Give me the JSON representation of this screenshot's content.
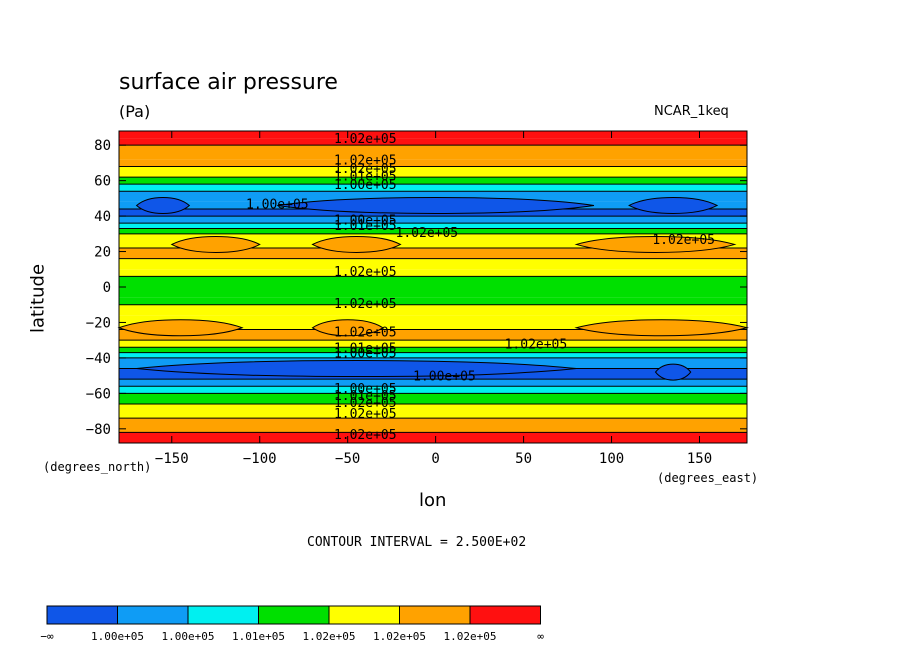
{
  "chart_data": {
    "type": "contour",
    "title": "surface air pressure",
    "units": "(Pa)",
    "model_label": "NCAR_1keq",
    "xlabel": "lon",
    "ylabel": "latitude",
    "x_units_label": "(degrees_east)",
    "y_units_label": "(degrees_north)",
    "xlim": [
      -180,
      177
    ],
    "ylim": [
      -88,
      88
    ],
    "x_ticks": [
      -150,
      -100,
      -50,
      0,
      50,
      100,
      150
    ],
    "y_ticks": [
      80,
      60,
      40,
      20,
      0,
      -20,
      -40,
      -60,
      -80
    ],
    "contour_interval_text": "CONTOUR INTERVAL = 2.500E+02",
    "band_colors": [
      "#0f56e8",
      "#0f9cf5",
      "#00f0f0",
      "#00e000",
      "#ffff00",
      "#ffa200",
      "#ff1010"
    ],
    "colorbar_labels": [
      "−∞",
      "1.00e+05",
      "1.00e+05",
      "1.01e+05",
      "1.02e+05",
      "1.02e+05",
      "1.02e+05",
      "∞"
    ],
    "zonal_levels": [
      {
        "lat": 88,
        "level": 6
      },
      {
        "lat": 84,
        "level": 6
      },
      {
        "lat": 80,
        "level": 5
      },
      {
        "lat": 72,
        "level": 5
      },
      {
        "lat": 68,
        "level": 4
      },
      {
        "lat": 62,
        "level": 3
      },
      {
        "lat": 58,
        "level": 2
      },
      {
        "lat": 54,
        "level": 1
      },
      {
        "lat": 48,
        "level": 1
      },
      {
        "lat": 44,
        "level": 0
      },
      {
        "lat": 40,
        "level": 1
      },
      {
        "lat": 36,
        "level": 2
      },
      {
        "lat": 33,
        "level": 3
      },
      {
        "lat": 30,
        "level": 4
      },
      {
        "lat": 22,
        "level": 5
      },
      {
        "lat": 16,
        "level": 4
      },
      {
        "lat": 10,
        "level": 4
      },
      {
        "lat": 6,
        "level": 3
      },
      {
        "lat": 0,
        "level": 3
      },
      {
        "lat": -6,
        "level": 3
      },
      {
        "lat": -10,
        "level": 4
      },
      {
        "lat": -16,
        "level": 4
      },
      {
        "lat": -24,
        "level": 5
      },
      {
        "lat": -30,
        "level": 4
      },
      {
        "lat": -34,
        "level": 3
      },
      {
        "lat": -37,
        "level": 2
      },
      {
        "lat": -40,
        "level": 1
      },
      {
        "lat": -46,
        "level": 0
      },
      {
        "lat": -52,
        "level": 1
      },
      {
        "lat": -56,
        "level": 2
      },
      {
        "lat": -60,
        "level": 3
      },
      {
        "lat": -66,
        "level": 4
      },
      {
        "lat": -74,
        "level": 5
      },
      {
        "lat": -82,
        "level": 6
      },
      {
        "lat": -88,
        "level": 6
      }
    ],
    "cells": [
      {
        "lon_from": -170,
        "lon_to": -140,
        "lat": 46,
        "level": 0
      },
      {
        "lon_from": -90,
        "lon_to": 90,
        "lat": 46,
        "level": 0
      },
      {
        "lon_from": 110,
        "lon_to": 160,
        "lat": 46,
        "level": 0
      },
      {
        "lon_from": -150,
        "lon_to": -100,
        "lat": 24,
        "level": 5
      },
      {
        "lon_from": -70,
        "lon_to": -20,
        "lat": 24,
        "level": 5
      },
      {
        "lon_from": 80,
        "lon_to": 170,
        "lat": 24,
        "level": 5
      },
      {
        "lon_from": -180,
        "lon_to": -110,
        "lat": -23,
        "level": 5
      },
      {
        "lon_from": -70,
        "lon_to": -30,
        "lat": -23,
        "level": 5
      },
      {
        "lon_from": 80,
        "lon_to": 177,
        "lat": -23,
        "level": 5
      },
      {
        "lon_from": -170,
        "lon_to": 80,
        "lat": -46,
        "level": 0
      },
      {
        "lon_from": 125,
        "lon_to": 145,
        "lat": -48,
        "level": 0
      }
    ],
    "contour_labels": [
      {
        "text": "1.02e+05",
        "lon": -40,
        "lat": 84
      },
      {
        "text": "1.02e+05",
        "lon": -40,
        "lat": 72
      },
      {
        "text": "1.02e+05",
        "lon": -40,
        "lat": 67
      },
      {
        "text": "1.01e+05",
        "lon": -40,
        "lat": 63
      },
      {
        "text": "1.00e+05",
        "lon": -40,
        "lat": 58
      },
      {
        "text": "1.00e+05",
        "lon": -90,
        "lat": 47
      },
      {
        "text": "1.00e+05",
        "lon": -40,
        "lat": 38
      },
      {
        "text": "1.01e+05",
        "lon": -40,
        "lat": 35
      },
      {
        "text": "1.02e+05",
        "lon": -5,
        "lat": 31
      },
      {
        "text": "1.02e+05",
        "lon": 141,
        "lat": 27
      },
      {
        "text": "1.02e+05",
        "lon": -40,
        "lat": 9
      },
      {
        "text": "1.02e+05",
        "lon": -40,
        "lat": -9
      },
      {
        "text": "1.02e+05",
        "lon": -40,
        "lat": -25
      },
      {
        "text": "1.02e+05",
        "lon": 57,
        "lat": -32
      },
      {
        "text": "1.01e+05",
        "lon": -40,
        "lat": -34
      },
      {
        "text": "1.00e+05",
        "lon": -40,
        "lat": -37
      },
      {
        "text": "1.00e+05",
        "lon": 5,
        "lat": -50
      },
      {
        "text": "1.00e+05",
        "lon": -40,
        "lat": -57
      },
      {
        "text": "1.01e+05",
        "lon": -40,
        "lat": -61
      },
      {
        "text": "1.02e+05",
        "lon": -40,
        "lat": -65
      },
      {
        "text": "1.02e+05",
        "lon": -40,
        "lat": -71
      },
      {
        "text": "1.02e+05",
        "lon": -40,
        "lat": -83
      }
    ]
  }
}
